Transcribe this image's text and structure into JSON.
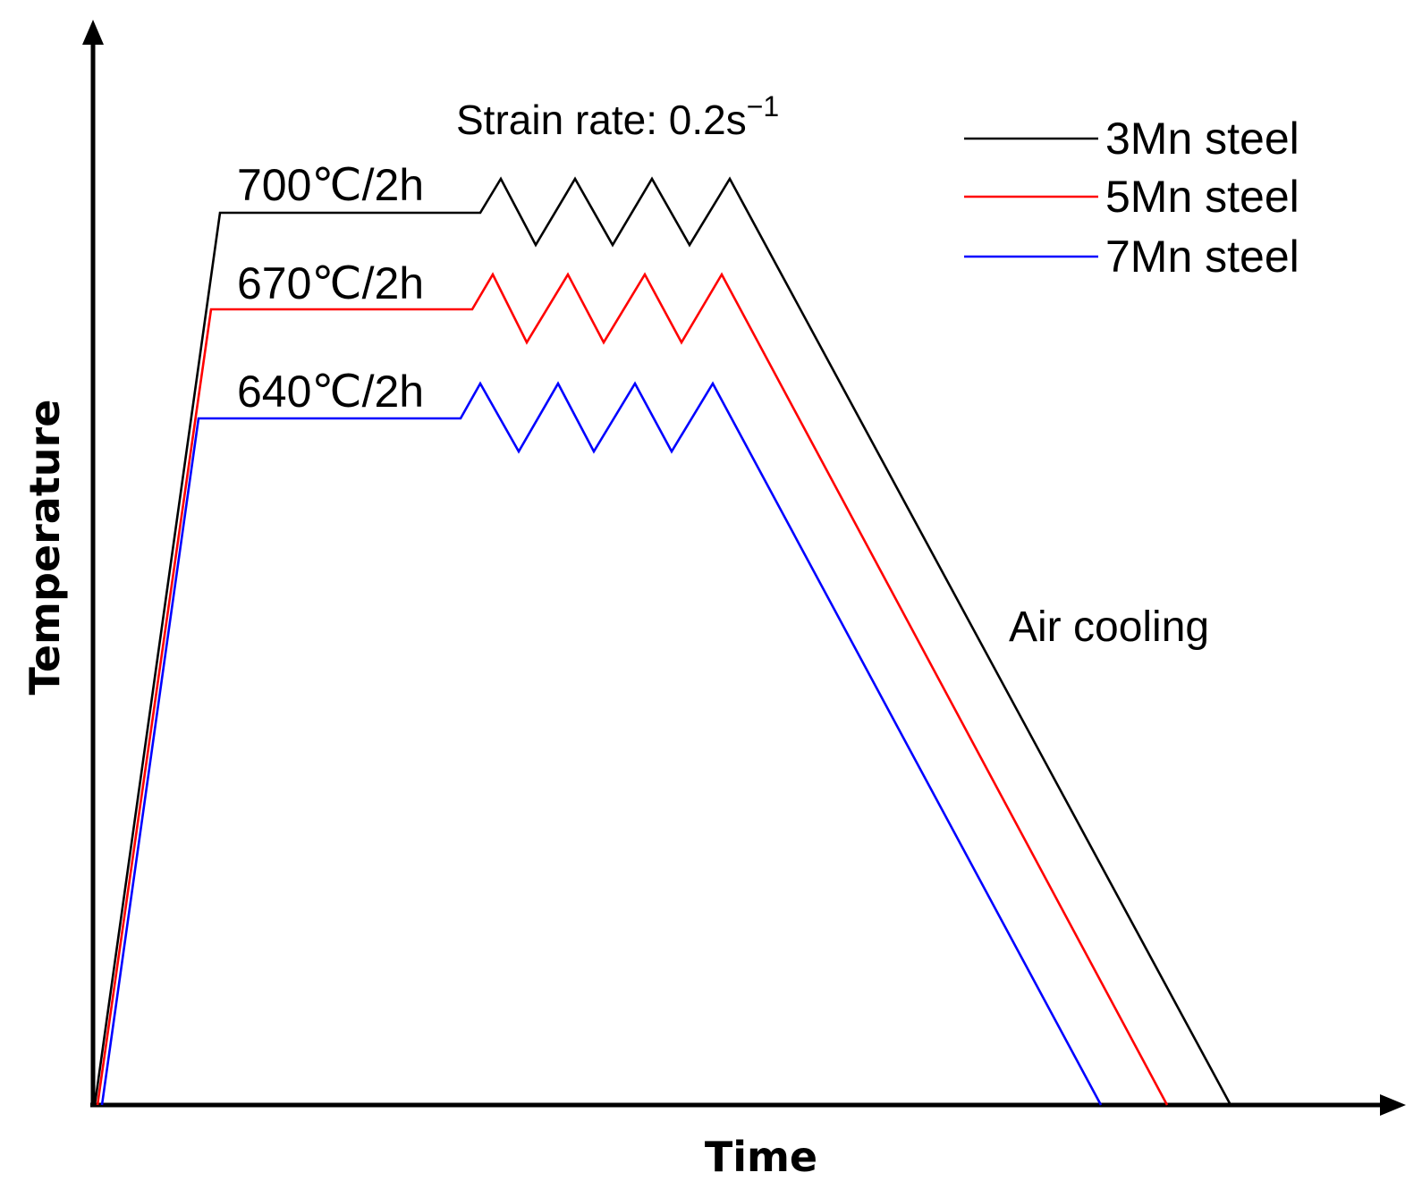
{
  "diagram": {
    "x_axis_title": "Time",
    "y_axis_title": "Temperature",
    "strain_rate": {
      "text": "Strain rate: 0.2s",
      "superscript": "−1"
    },
    "cooling_label": "Air cooling",
    "series": [
      {
        "name": "3Mn steel",
        "color": "#000000",
        "hold_label": "700℃/2h"
      },
      {
        "name": "5Mn steel",
        "color": "#ff0000",
        "hold_label": "670℃/2h"
      },
      {
        "name": "7Mn steel",
        "color": "#0000ff",
        "hold_label": "640℃/2h"
      }
    ]
  }
}
